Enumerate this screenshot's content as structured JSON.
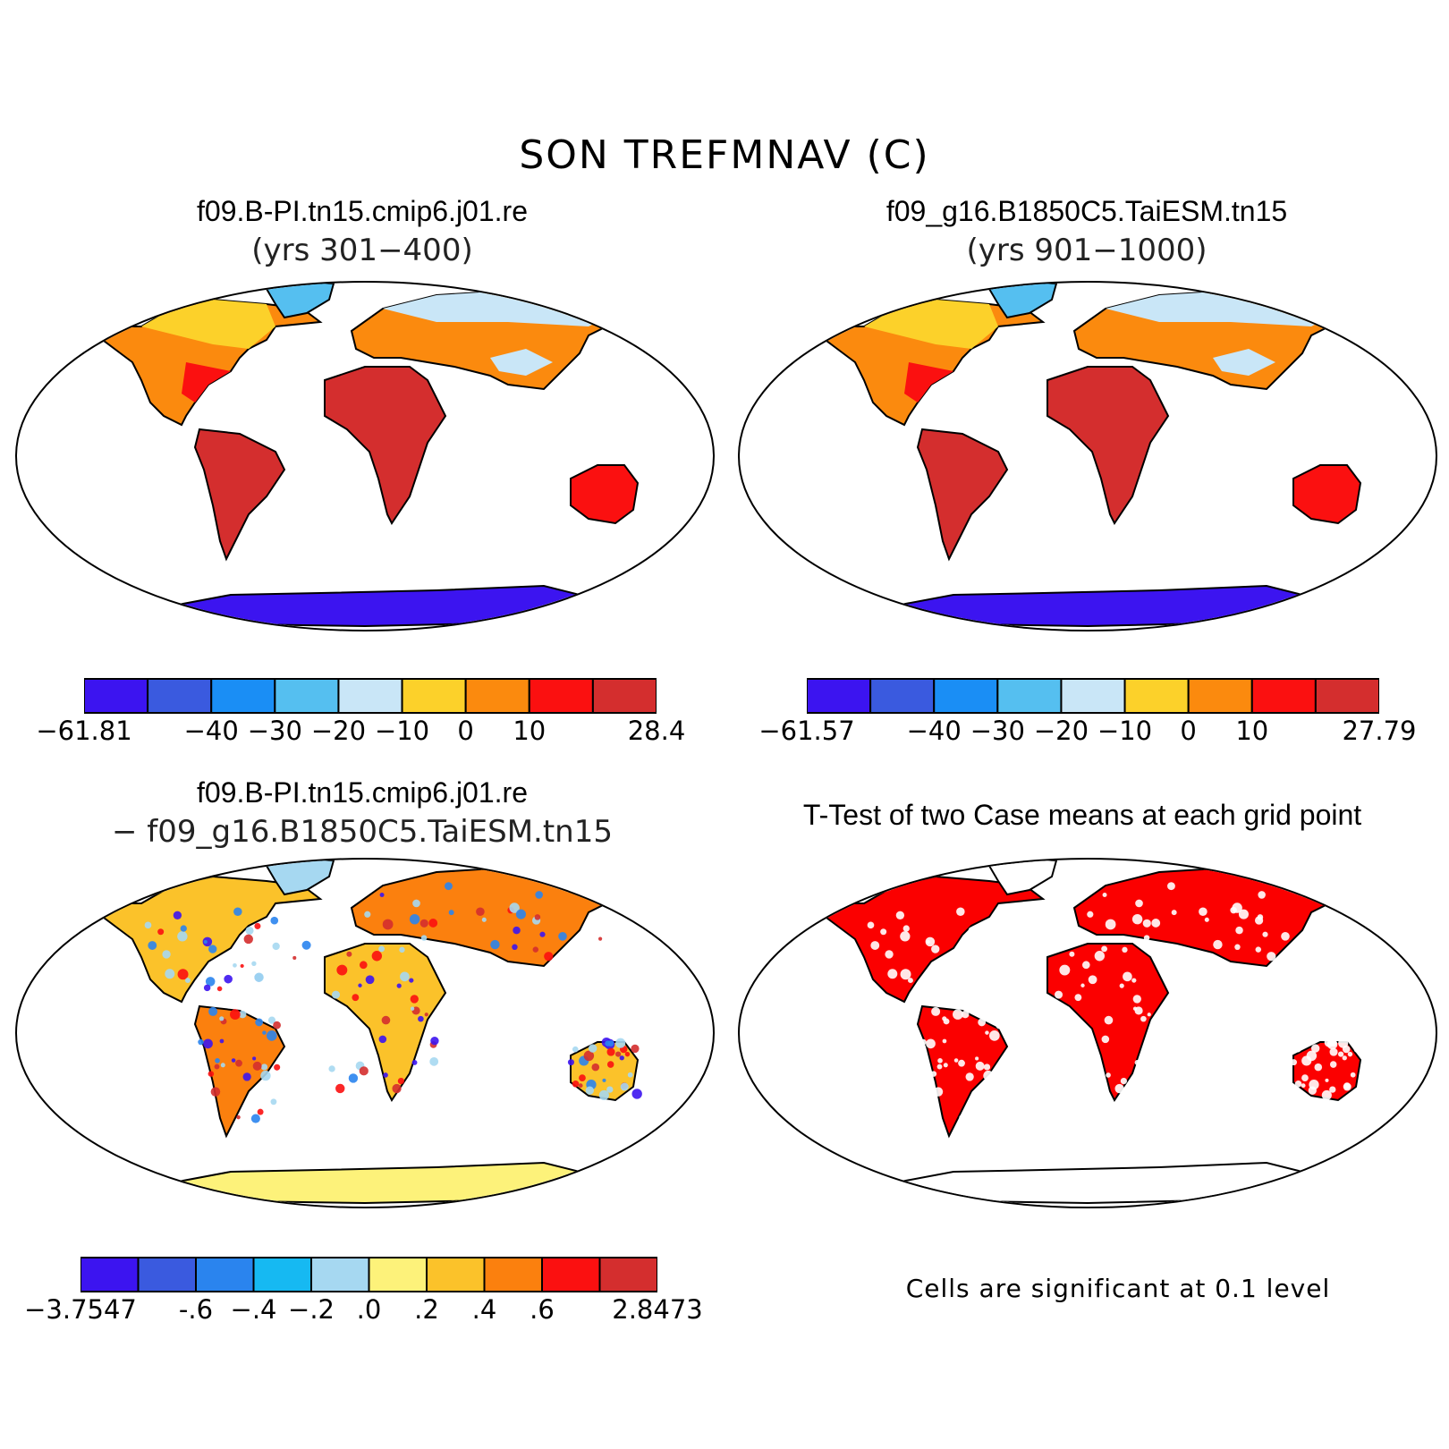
{
  "title": "SON TREFMNAV (C)",
  "panels": [
    {
      "name": "case1",
      "title": "f09.B-PI.tn15.cmip6.j01.re",
      "subtitle": "(yrs 301−400)",
      "colorbar": {
        "colors": [
          "#3c14f0",
          "#3a5adf",
          "#1a8ef5",
          "#55bff0",
          "#c9e6f7",
          "#fcd12a",
          "#fb8a0e",
          "#fb1010",
          "#d42e2e"
        ],
        "ticks": [
          "−61.81",
          "−40",
          "−30",
          "−20",
          "−10",
          "0",
          "10",
          "28.4"
        ]
      }
    },
    {
      "name": "case2",
      "title": "f09_g16.B1850C5.TaiESM.tn15",
      "subtitle": "(yrs 901−1000)",
      "colorbar": {
        "colors": [
          "#3c14f0",
          "#3a5adf",
          "#1a8ef5",
          "#55bff0",
          "#c9e6f7",
          "#fcd12a",
          "#fb8a0e",
          "#fb1010",
          "#d42e2e"
        ],
        "ticks": [
          "−61.57",
          "−40",
          "−30",
          "−20",
          "−10",
          "0",
          "10",
          "27.79"
        ]
      }
    },
    {
      "name": "difference",
      "title": "f09.B-PI.tn15.cmip6.j01.re",
      "subtitle": "− f09_g16.B1850C5.TaiESM.tn15",
      "colorbar": {
        "colors": [
          "#3c14f0",
          "#3a5adf",
          "#2a84ee",
          "#16b9f2",
          "#a6d8f1",
          "#fdf27a",
          "#fbc22a",
          "#fb800e",
          "#fb1010",
          "#d42e2e"
        ],
        "ticks": [
          "−3.7547",
          "-.6",
          "−.4",
          "−.2",
          ".0",
          ".2",
          ".4",
          ".6",
          "2.8473"
        ]
      }
    },
    {
      "name": "ttest",
      "title": "T-Test of two Case means at each grid point",
      "note": "Cells are significant at 0.1 level",
      "colors": {
        "significant": "#fb0000"
      }
    }
  ]
}
